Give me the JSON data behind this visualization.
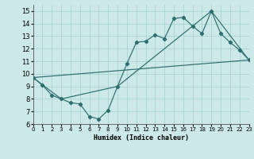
{
  "xlabel": "Humidex (Indice chaleur)",
  "bg_color": "#cce8e8",
  "grid_color": "#aad4d4",
  "line_color": "#2d6e6e",
  "line1_x": [
    0,
    1,
    2,
    3,
    4,
    5,
    6,
    7,
    8,
    9,
    10,
    11,
    12,
    13,
    14,
    15,
    16,
    17,
    18,
    19,
    20,
    21,
    22,
    23
  ],
  "line1_y": [
    9.7,
    9.1,
    8.3,
    8.0,
    7.7,
    7.6,
    6.6,
    6.4,
    7.1,
    9.0,
    10.8,
    12.5,
    12.6,
    13.1,
    12.8,
    14.4,
    14.5,
    13.8,
    13.2,
    15.0,
    13.2,
    12.5,
    11.9,
    11.1
  ],
  "line2_x": [
    0,
    3,
    9,
    19,
    23
  ],
  "line2_y": [
    9.7,
    8.0,
    9.0,
    15.0,
    11.1
  ],
  "line3_x": [
    0,
    23
  ],
  "line3_y": [
    9.7,
    11.1
  ],
  "xlim": [
    0,
    23
  ],
  "ylim": [
    6,
    15.5
  ],
  "yticks": [
    6,
    7,
    8,
    9,
    10,
    11,
    12,
    13,
    14,
    15
  ],
  "xticks": [
    0,
    1,
    2,
    3,
    4,
    5,
    6,
    7,
    8,
    9,
    10,
    11,
    12,
    13,
    14,
    15,
    16,
    17,
    18,
    19,
    20,
    21,
    22,
    23
  ]
}
